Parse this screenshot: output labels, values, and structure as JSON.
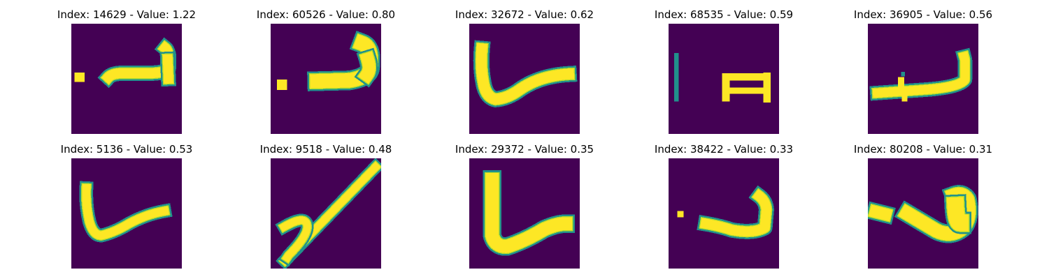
{
  "colors": {
    "background": "#440154",
    "stroke_high": "#fde725",
    "stroke_mid": "#b5de2b",
    "stroke_edge": "#21918c",
    "stroke_low": "#3b528b"
  },
  "chart_data": {
    "type": "image-grid",
    "colormap": "viridis",
    "images": [
      {
        "index": 14629,
        "value": 1.22,
        "title": "Index: 14629 - Value: 1.22",
        "glyph": "dot-hook-long"
      },
      {
        "index": 60526,
        "value": 0.8,
        "title": "Index: 60526 - Value: 0.80",
        "glyph": "dot-hook-thick"
      },
      {
        "index": 32672,
        "value": 0.62,
        "title": "Index: 32672 - Value: 0.62",
        "glyph": "check-tall"
      },
      {
        "index": 68535,
        "value": 0.59,
        "title": "Index: 68535 - Value: 0.59",
        "glyph": "bar-and-box"
      },
      {
        "index": 36905,
        "value": 0.56,
        "title": "Index: 36905 - Value: 0.56",
        "glyph": "hook-with-ticks"
      },
      {
        "index": 5136,
        "value": 0.53,
        "title": "Index: 5136 - Value: 0.53",
        "glyph": "check-thin"
      },
      {
        "index": 9518,
        "value": 0.48,
        "title": "Index: 9518 - Value: 0.48",
        "glyph": "loop-diagonal"
      },
      {
        "index": 29372,
        "value": 0.35,
        "title": "Index: 29372 - Value: 0.35",
        "glyph": "check-bold"
      },
      {
        "index": 38422,
        "value": 0.33,
        "title": "Index: 38422 - Value: 0.33",
        "glyph": "dot-hook-small"
      },
      {
        "index": 80208,
        "value": 0.31,
        "title": "Index: 80208 - Value: 0.31",
        "glyph": "dot-hook-blob"
      }
    ]
  }
}
